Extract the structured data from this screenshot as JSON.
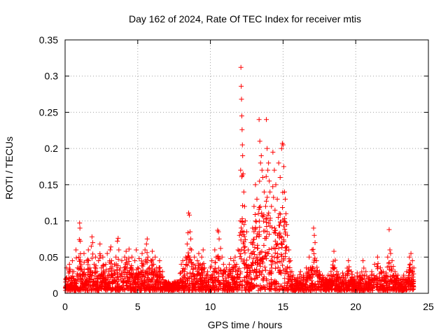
{
  "chart_data": {
    "type": "scatter",
    "title": "Day 162 of 2024, Rate Of TEC Index for receiver mtis",
    "xlabel": "GPS time / hours",
    "ylabel": "ROTI / TECUs",
    "xlim": [
      0,
      25
    ],
    "ylim": [
      0,
      0.35
    ],
    "xticks": [
      0,
      5,
      10,
      15,
      20,
      25
    ],
    "xtick_labels": [
      "0",
      "5",
      "10",
      "15",
      "20",
      "25"
    ],
    "yticks": [
      0,
      0.05,
      0.1,
      0.15,
      0.2,
      0.25,
      0.3,
      0.35
    ],
    "ytick_labels": [
      "0",
      "0.05",
      "0.1",
      "0.15",
      "0.2",
      "0.25",
      "0.3",
      "0.35"
    ],
    "grid": true,
    "marker": "+",
    "color": "#ff0000",
    "series": [
      {
        "name": "ROTI",
        "points": [
          [
            0.05,
            0.02
          ],
          [
            0.1,
            0.035
          ],
          [
            0.15,
            0.012
          ],
          [
            0.25,
            0.028
          ],
          [
            0.3,
            0.04
          ],
          [
            0.4,
            0.022
          ],
          [
            0.5,
            0.045
          ],
          [
            0.6,
            0.03
          ],
          [
            0.7,
            0.018
          ],
          [
            0.75,
            0.06
          ],
          [
            0.85,
            0.035
          ],
          [
            0.9,
            0.025
          ],
          [
            0.95,
            0.05
          ],
          [
            1.0,
            0.097
          ],
          [
            1.02,
            0.09
          ],
          [
            1.05,
            0.072
          ],
          [
            1.1,
            0.04
          ],
          [
            1.2,
            0.03
          ],
          [
            1.3,
            0.055
          ],
          [
            1.4,
            0.025
          ],
          [
            1.5,
            0.045
          ],
          [
            1.6,
            0.06
          ],
          [
            1.7,
            0.035
          ],
          [
            1.8,
            0.065
          ],
          [
            1.85,
            0.078
          ],
          [
            1.9,
            0.07
          ],
          [
            2.0,
            0.04
          ],
          [
            2.1,
            0.05
          ],
          [
            2.2,
            0.03
          ],
          [
            2.3,
            0.045
          ],
          [
            2.4,
            0.068
          ],
          [
            2.5,
            0.035
          ],
          [
            2.6,
            0.05
          ],
          [
            2.7,
            0.028
          ],
          [
            2.8,
            0.04
          ],
          [
            2.9,
            0.055
          ],
          [
            3.0,
            0.03
          ],
          [
            3.1,
            0.06
          ],
          [
            3.15,
            0.064
          ],
          [
            3.2,
            0.045
          ],
          [
            3.3,
            0.025
          ],
          [
            3.4,
            0.04
          ],
          [
            3.5,
            0.05
          ],
          [
            3.6,
            0.072
          ],
          [
            3.65,
            0.076
          ],
          [
            3.7,
            0.06
          ],
          [
            3.8,
            0.035
          ],
          [
            3.9,
            0.045
          ],
          [
            4.0,
            0.03
          ],
          [
            4.1,
            0.05
          ],
          [
            4.2,
            0.058
          ],
          [
            4.3,
            0.04
          ],
          [
            4.4,
            0.061
          ],
          [
            4.5,
            0.035
          ],
          [
            4.6,
            0.05
          ],
          [
            4.7,
            0.028
          ],
          [
            4.8,
            0.045
          ],
          [
            4.9,
            0.06
          ],
          [
            5.0,
            0.035
          ],
          [
            5.1,
            0.048
          ],
          [
            5.2,
            0.03
          ],
          [
            5.3,
            0.055
          ],
          [
            5.4,
            0.04
          ],
          [
            5.5,
            0.06
          ],
          [
            5.6,
            0.068
          ],
          [
            5.65,
            0.075
          ],
          [
            5.7,
            0.05
          ],
          [
            5.8,
            0.035
          ],
          [
            5.9,
            0.045
          ],
          [
            6.0,
            0.058
          ],
          [
            6.1,
            0.04
          ],
          [
            6.2,
            0.05
          ],
          [
            6.3,
            0.035
          ],
          [
            6.4,
            0.03
          ],
          [
            6.5,
            0.045
          ],
          [
            6.6,
            0.025
          ],
          [
            6.7,
            0.03
          ],
          [
            6.8,
            0.015
          ],
          [
            7.0,
            0.01
          ],
          [
            7.2,
            0.012
          ],
          [
            7.4,
            0.008
          ],
          [
            7.6,
            0.01
          ],
          [
            7.8,
            0.015
          ],
          [
            8.0,
            0.04
          ],
          [
            8.1,
            0.045
          ],
          [
            8.2,
            0.03
          ],
          [
            8.3,
            0.05
          ],
          [
            8.4,
            0.068
          ],
          [
            8.5,
            0.111
          ],
          [
            8.55,
            0.108
          ],
          [
            8.6,
            0.085
          ],
          [
            8.65,
            0.075
          ],
          [
            8.7,
            0.06
          ],
          [
            8.8,
            0.04
          ],
          [
            8.9,
            0.05
          ],
          [
            9.0,
            0.035
          ],
          [
            9.1,
            0.045
          ],
          [
            9.2,
            0.055
          ],
          [
            9.3,
            0.04
          ],
          [
            9.4,
            0.05
          ],
          [
            9.5,
            0.06
          ],
          [
            9.6,
            0.035
          ],
          [
            9.7,
            0.025
          ],
          [
            9.8,
            0.03
          ],
          [
            9.9,
            0.02
          ],
          [
            10.0,
            0.035
          ],
          [
            10.1,
            0.045
          ],
          [
            10.2,
            0.03
          ],
          [
            10.3,
            0.06
          ],
          [
            10.4,
            0.05
          ],
          [
            10.5,
            0.087
          ],
          [
            10.55,
            0.085
          ],
          [
            10.6,
            0.075
          ],
          [
            10.7,
            0.062
          ],
          [
            10.8,
            0.05
          ],
          [
            10.9,
            0.04
          ],
          [
            11.0,
            0.03
          ],
          [
            11.1,
            0.035
          ],
          [
            11.2,
            0.025
          ],
          [
            11.3,
            0.04
          ],
          [
            11.4,
            0.048
          ],
          [
            11.5,
            0.035
          ],
          [
            11.6,
            0.045
          ],
          [
            11.7,
            0.05
          ],
          [
            11.8,
            0.04
          ],
          [
            11.9,
            0.06
          ],
          [
            12.0,
            0.08
          ],
          [
            12.05,
            0.1
          ],
          [
            12.08,
            0.17
          ],
          [
            12.1,
            0.312
          ],
          [
            12.12,
            0.286
          ],
          [
            12.14,
            0.268
          ],
          [
            12.16,
            0.245
          ],
          [
            12.18,
            0.226
          ],
          [
            12.2,
            0.205
          ],
          [
            12.22,
            0.19
          ],
          [
            12.25,
            0.165
          ],
          [
            12.3,
            0.14
          ],
          [
            12.35,
            0.12
          ],
          [
            12.4,
            0.1
          ],
          [
            12.5,
            0.085
          ],
          [
            12.6,
            0.06
          ],
          [
            12.7,
            0.05
          ],
          [
            12.8,
            0.07
          ],
          [
            12.9,
            0.09
          ],
          [
            13.0,
            0.12
          ],
          [
            13.1,
            0.15
          ],
          [
            13.2,
            0.13
          ],
          [
            13.3,
            0.11
          ],
          [
            13.35,
            0.24
          ],
          [
            13.4,
            0.21
          ],
          [
            13.45,
            0.18
          ],
          [
            13.5,
            0.19
          ],
          [
            13.55,
            0.17
          ],
          [
            13.6,
            0.16
          ],
          [
            13.7,
            0.14
          ],
          [
            13.8,
            0.12
          ],
          [
            13.85,
            0.24
          ],
          [
            13.9,
            0.2
          ],
          [
            13.95,
            0.17
          ],
          [
            14.0,
            0.18
          ],
          [
            14.05,
            0.155
          ],
          [
            14.1,
            0.14
          ],
          [
            14.2,
            0.12
          ],
          [
            14.3,
            0.195
          ],
          [
            14.4,
            0.17
          ],
          [
            14.5,
            0.15
          ],
          [
            14.6,
            0.13
          ],
          [
            14.7,
            0.18
          ],
          [
            14.8,
            0.16
          ],
          [
            14.9,
            0.2
          ],
          [
            14.95,
            0.207
          ],
          [
            15.0,
            0.205
          ],
          [
            15.05,
            0.175
          ],
          [
            15.1,
            0.14
          ],
          [
            15.15,
            0.13
          ],
          [
            15.2,
            0.11
          ],
          [
            15.25,
            0.095
          ],
          [
            15.3,
            0.08
          ],
          [
            15.4,
            0.06
          ],
          [
            15.5,
            0.045
          ],
          [
            15.6,
            0.03
          ],
          [
            15.7,
            0.025
          ],
          [
            15.8,
            0.02
          ],
          [
            15.9,
            0.018
          ],
          [
            16.0,
            0.022
          ],
          [
            16.2,
            0.03
          ],
          [
            16.4,
            0.025
          ],
          [
            16.6,
            0.035
          ],
          [
            16.8,
            0.05
          ],
          [
            17.0,
            0.06
          ],
          [
            17.1,
            0.09
          ],
          [
            17.15,
            0.08
          ],
          [
            17.2,
            0.07
          ],
          [
            17.3,
            0.045
          ],
          [
            17.5,
            0.03
          ],
          [
            17.7,
            0.025
          ],
          [
            17.9,
            0.02
          ],
          [
            18.1,
            0.025
          ],
          [
            18.3,
            0.03
          ],
          [
            18.5,
            0.058
          ],
          [
            18.7,
            0.03
          ],
          [
            18.9,
            0.022
          ],
          [
            19.1,
            0.028
          ],
          [
            19.3,
            0.025
          ],
          [
            19.5,
            0.045
          ],
          [
            19.7,
            0.03
          ],
          [
            19.9,
            0.022
          ],
          [
            20.1,
            0.028
          ],
          [
            20.3,
            0.025
          ],
          [
            20.5,
            0.045
          ],
          [
            20.7,
            0.03
          ],
          [
            20.9,
            0.022
          ],
          [
            21.1,
            0.03
          ],
          [
            21.3,
            0.04
          ],
          [
            21.5,
            0.05
          ],
          [
            21.7,
            0.035
          ],
          [
            21.9,
            0.03
          ],
          [
            22.1,
            0.028
          ],
          [
            22.2,
            0.05
          ],
          [
            22.3,
            0.088
          ],
          [
            22.35,
            0.06
          ],
          [
            22.4,
            0.055
          ],
          [
            22.5,
            0.045
          ],
          [
            22.7,
            0.03
          ],
          [
            22.9,
            0.025
          ],
          [
            23.1,
            0.02
          ],
          [
            23.3,
            0.025
          ],
          [
            23.5,
            0.03
          ],
          [
            23.7,
            0.05
          ],
          [
            23.8,
            0.055
          ],
          [
            23.9,
            0.045
          ],
          [
            24.0,
            0.035
          ]
        ]
      }
    ]
  }
}
